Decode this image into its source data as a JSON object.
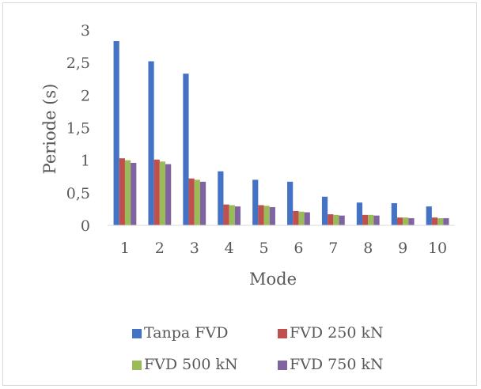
{
  "chart_data": {
    "type": "bar",
    "title": "",
    "xlabel": "Mode",
    "ylabel": "Periode (s)",
    "categories": [
      "1",
      "2",
      "3",
      "4",
      "5",
      "6",
      "7",
      "8",
      "9",
      "10"
    ],
    "ylim": [
      0,
      3
    ],
    "yticks": [
      "0",
      "0,5",
      "1",
      "1,5",
      "2",
      "2,5",
      "3"
    ],
    "grid": false,
    "legend_position": "bottom",
    "series": [
      {
        "name": "Tanpa FVD",
        "color": "#4472c4",
        "values": [
          2.83,
          2.52,
          2.33,
          0.83,
          0.7,
          0.67,
          0.44,
          0.35,
          0.34,
          0.29
        ]
      },
      {
        "name": "FVD 250 kN",
        "color": "#c0504d",
        "values": [
          1.03,
          1.01,
          0.72,
          0.32,
          0.31,
          0.22,
          0.17,
          0.16,
          0.12,
          0.12
        ]
      },
      {
        "name": "FVD 500 kN",
        "color": "#9bbb59",
        "values": [
          1.0,
          0.98,
          0.7,
          0.31,
          0.3,
          0.21,
          0.16,
          0.16,
          0.12,
          0.11
        ]
      },
      {
        "name": "FVD 750 kN",
        "color": "#8064a2",
        "values": [
          0.96,
          0.94,
          0.67,
          0.29,
          0.28,
          0.2,
          0.15,
          0.15,
          0.11,
          0.11
        ]
      }
    ]
  }
}
